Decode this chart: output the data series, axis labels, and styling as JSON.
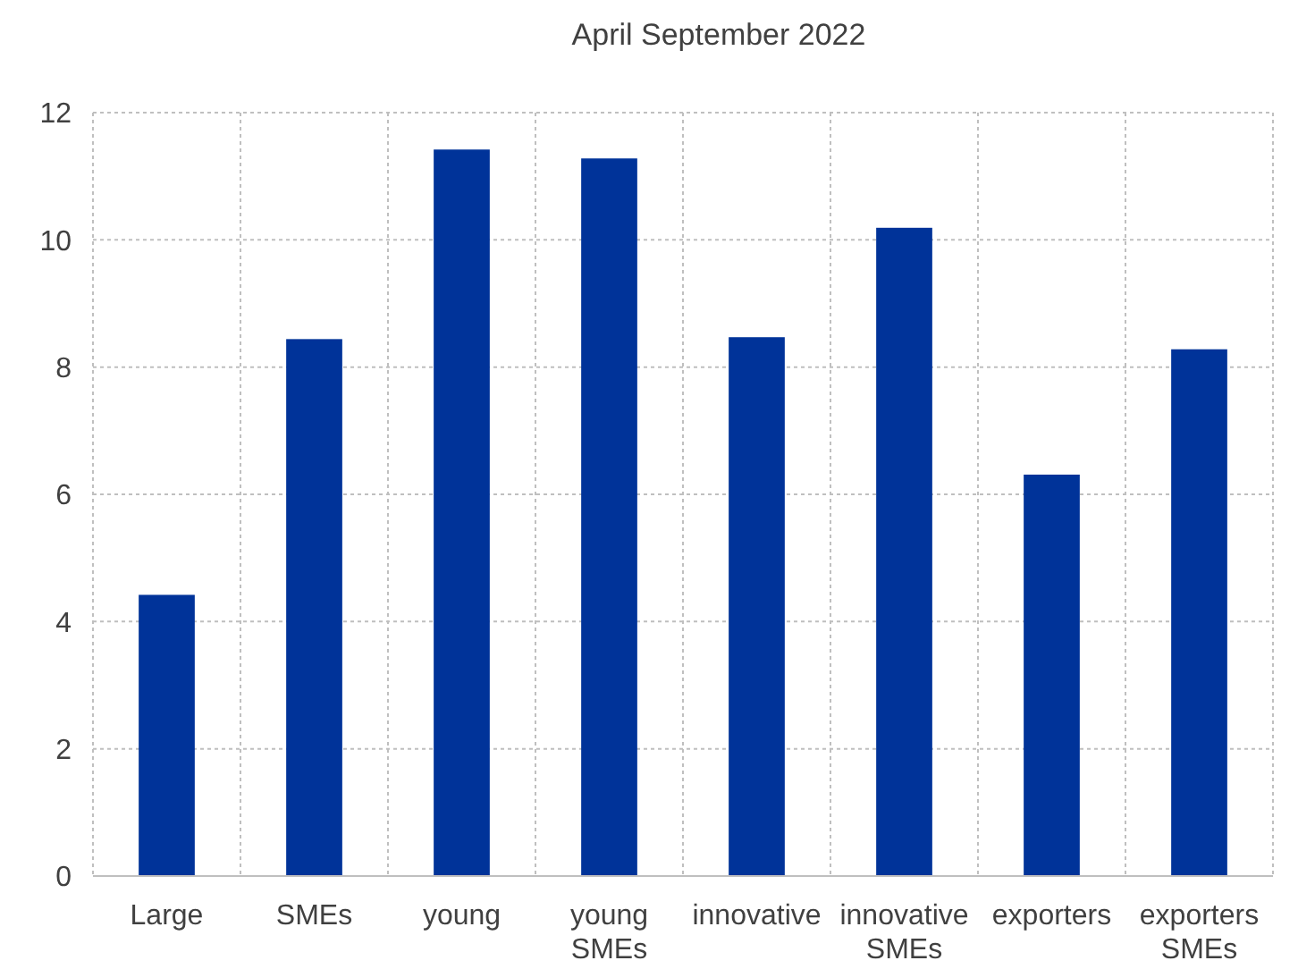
{
  "chart_data": {
    "type": "bar",
    "title": "April  September 2022",
    "categories": [
      "Large",
      "SMEs",
      "young",
      "young SMEs",
      "innovative",
      "innovative SMEs",
      "exporters",
      "exporters SMEs"
    ],
    "values": [
      4.42,
      8.44,
      11.42,
      11.28,
      8.47,
      10.19,
      6.31,
      8.28
    ],
    "color": "#003399",
    "ylim": [
      0,
      12
    ],
    "yticks": [
      0,
      2,
      4,
      6,
      8,
      10,
      12
    ],
    "grid": true
  }
}
